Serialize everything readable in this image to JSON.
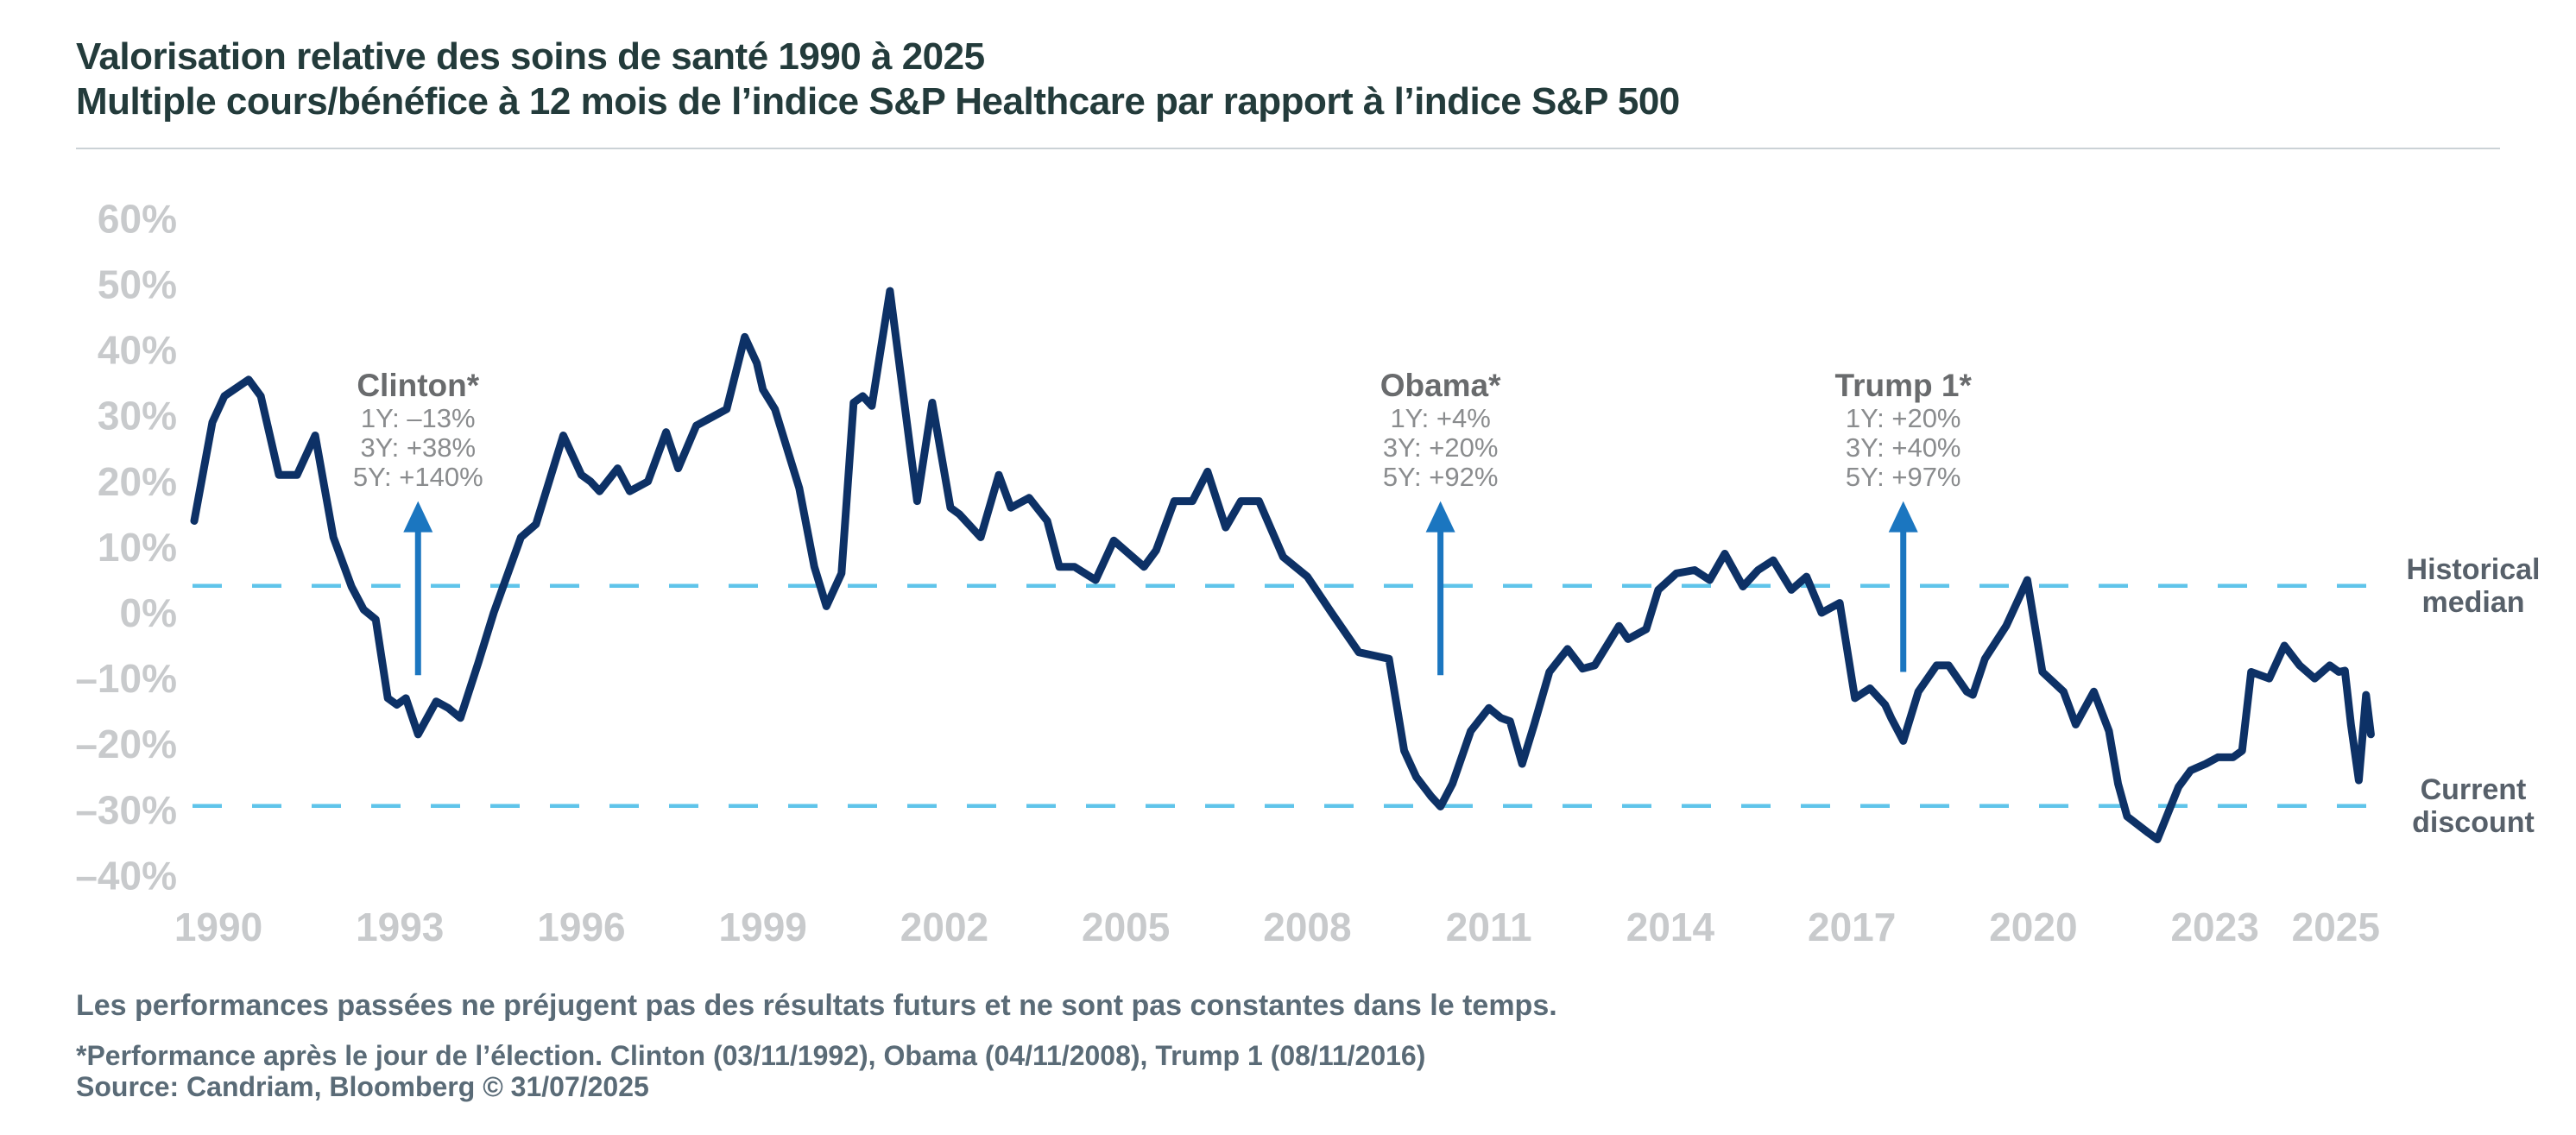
{
  "header": {
    "title_line1": "Valorisation relative des soins de santé 1990 à 2025",
    "title_line2": "Multiple cours/bénéfice à 12 mois de l’indice S&P Healthcare par rapport à l’indice S&P 500"
  },
  "colors": {
    "title": "#233b3b",
    "line": "#0d3166",
    "dashed_reference": "#5fc4ea",
    "arrow": "#1b76c0",
    "axis_labels": "#c8cacc",
    "annotation_title": "#696b6d",
    "annotation_values": "#8a8c8e",
    "reference_labels": "#57606a",
    "footer_text": "#5a6b77",
    "background": "#ffffff"
  },
  "chart_data": {
    "type": "line",
    "unit": "%",
    "grid": false,
    "legend": "none",
    "xlim": [
      1989.4,
      2026.4
    ],
    "ylim": [
      -45,
      65
    ],
    "x_tick_years": [
      1990,
      1993,
      1996,
      1999,
      2002,
      2005,
      2008,
      2011,
      2014,
      2017,
      2020,
      2023,
      2025
    ],
    "x_tick_labels": [
      "1990",
      "1993",
      "1996",
      "1999",
      "2002",
      "2005",
      "2008",
      "2011",
      "2014",
      "2017",
      "2020",
      "2023",
      "2025"
    ],
    "y_tick_values": [
      60,
      50,
      40,
      30,
      20,
      10,
      0,
      -10,
      -20,
      -30,
      -40
    ],
    "y_tick_labels": [
      "60%",
      "50%",
      "40%",
      "30%",
      "20%",
      "10%",
      "0%",
      "–10%",
      "–20%",
      "–30%",
      "–40%"
    ],
    "series": [
      {
        "name": "S&P Healthcare 12-month forward P/E premium vs S&P 500",
        "color": "#0d3166",
        "points": [
          [
            1989.6,
            14
          ],
          [
            1989.9,
            29
          ],
          [
            1990.1,
            33
          ],
          [
            1990.5,
            35.5
          ],
          [
            1990.7,
            33
          ],
          [
            1991.0,
            21
          ],
          [
            1991.3,
            21
          ],
          [
            1991.6,
            27
          ],
          [
            1991.9,
            11.5
          ],
          [
            1992.2,
            4
          ],
          [
            1992.4,
            0.5
          ],
          [
            1992.6,
            -1
          ],
          [
            1992.8,
            -13
          ],
          [
            1992.95,
            -14
          ],
          [
            1993.1,
            -13
          ],
          [
            1993.3,
            -18.5
          ],
          [
            1993.6,
            -13.5
          ],
          [
            1993.8,
            -14.5
          ],
          [
            1994.0,
            -16
          ],
          [
            1994.3,
            -7.5
          ],
          [
            1994.55,
            0
          ],
          [
            1995.0,
            11.5
          ],
          [
            1995.25,
            13.5
          ],
          [
            1995.7,
            27
          ],
          [
            1996.0,
            21
          ],
          [
            1996.15,
            20
          ],
          [
            1996.3,
            18.5
          ],
          [
            1996.6,
            22
          ],
          [
            1996.8,
            18.5
          ],
          [
            1997.1,
            20
          ],
          [
            1997.4,
            27.5
          ],
          [
            1997.6,
            22
          ],
          [
            1997.9,
            28.5
          ],
          [
            1998.1,
            29.5
          ],
          [
            1998.4,
            31
          ],
          [
            1998.7,
            42
          ],
          [
            1998.9,
            38
          ],
          [
            1999.0,
            34
          ],
          [
            1999.2,
            31
          ],
          [
            1999.6,
            19
          ],
          [
            1999.85,
            7
          ],
          [
            2000.05,
            1
          ],
          [
            2000.3,
            6
          ],
          [
            2000.5,
            32
          ],
          [
            2000.65,
            33
          ],
          [
            2000.8,
            31.5
          ],
          [
            2001.1,
            49
          ],
          [
            2001.45,
            24
          ],
          [
            2001.55,
            17
          ],
          [
            2001.8,
            32
          ],
          [
            2002.1,
            16
          ],
          [
            2002.25,
            15
          ],
          [
            2002.6,
            11.5
          ],
          [
            2002.9,
            21
          ],
          [
            2003.1,
            16
          ],
          [
            2003.4,
            17.5
          ],
          [
            2003.7,
            14
          ],
          [
            2003.9,
            7
          ],
          [
            2004.15,
            7
          ],
          [
            2004.5,
            5
          ],
          [
            2004.8,
            11
          ],
          [
            2005.3,
            7
          ],
          [
            2005.5,
            9.5
          ],
          [
            2005.8,
            17
          ],
          [
            2006.1,
            17
          ],
          [
            2006.35,
            21.5
          ],
          [
            2006.65,
            13
          ],
          [
            2006.9,
            17
          ],
          [
            2007.2,
            17
          ],
          [
            2007.6,
            8.5
          ],
          [
            2008.0,
            5.5
          ],
          [
            2008.4,
            0
          ],
          [
            2008.7,
            -4
          ],
          [
            2008.85,
            -6
          ],
          [
            2009.1,
            -6.5
          ],
          [
            2009.35,
            -7
          ],
          [
            2009.6,
            -21
          ],
          [
            2009.8,
            -25
          ],
          [
            2010.05,
            -28
          ],
          [
            2010.2,
            -29.5
          ],
          [
            2010.4,
            -26
          ],
          [
            2010.7,
            -18
          ],
          [
            2011.0,
            -14.5
          ],
          [
            2011.2,
            -16
          ],
          [
            2011.35,
            -16.5
          ],
          [
            2011.55,
            -23
          ],
          [
            2011.75,
            -17
          ],
          [
            2012.0,
            -9
          ],
          [
            2012.3,
            -5.5
          ],
          [
            2012.55,
            -8.5
          ],
          [
            2012.75,
            -8
          ],
          [
            2013.15,
            -2
          ],
          [
            2013.3,
            -4
          ],
          [
            2013.6,
            -2.5
          ],
          [
            2013.8,
            3.5
          ],
          [
            2014.1,
            6
          ],
          [
            2014.4,
            6.5
          ],
          [
            2014.65,
            5
          ],
          [
            2014.9,
            9
          ],
          [
            2015.2,
            4
          ],
          [
            2015.45,
            6.5
          ],
          [
            2015.7,
            8
          ],
          [
            2016.0,
            3.5
          ],
          [
            2016.25,
            5.5
          ],
          [
            2016.5,
            0
          ],
          [
            2016.8,
            1.5
          ],
          [
            2017.05,
            -13
          ],
          [
            2017.3,
            -11.5
          ],
          [
            2017.55,
            -14
          ],
          [
            2017.65,
            -16
          ],
          [
            2017.85,
            -19.5
          ],
          [
            2018.1,
            -12
          ],
          [
            2018.4,
            -8
          ],
          [
            2018.6,
            -8
          ],
          [
            2018.9,
            -12
          ],
          [
            2019.0,
            -12.5
          ],
          [
            2019.2,
            -7
          ],
          [
            2019.55,
            -2
          ],
          [
            2019.9,
            5
          ],
          [
            2020.15,
            -9
          ],
          [
            2020.5,
            -12
          ],
          [
            2020.7,
            -17
          ],
          [
            2021.0,
            -12
          ],
          [
            2021.25,
            -18
          ],
          [
            2021.4,
            -26
          ],
          [
            2021.55,
            -31
          ],
          [
            2021.9,
            -33.5
          ],
          [
            2022.05,
            -34.5
          ],
          [
            2022.4,
            -26.5
          ],
          [
            2022.6,
            -24
          ],
          [
            2022.85,
            -23
          ],
          [
            2023.05,
            -22
          ],
          [
            2023.3,
            -22
          ],
          [
            2023.45,
            -21
          ],
          [
            2023.6,
            -9
          ],
          [
            2023.9,
            -10
          ],
          [
            2024.15,
            -5
          ],
          [
            2024.4,
            -8
          ],
          [
            2024.65,
            -10
          ],
          [
            2024.9,
            -8
          ],
          [
            2025.05,
            -9
          ],
          [
            2025.15,
            -8.8
          ],
          [
            2025.25,
            -17
          ],
          [
            2025.38,
            -25.5
          ],
          [
            2025.5,
            -12.5
          ],
          [
            2025.58,
            -18.5
          ]
        ]
      }
    ],
    "reference_lines": [
      {
        "id": "historical_median",
        "value": 4.1,
        "style": "dashed"
      },
      {
        "id": "current_discount",
        "value": -29.4,
        "style": "dashed"
      }
    ]
  },
  "reference_labels": {
    "historical_median": {
      "line1": "Historical",
      "line2": "median",
      "value": 4.1
    },
    "current_discount": {
      "line1": "Current",
      "line2": "discount",
      "value": -29.4
    }
  },
  "annotations": [
    {
      "id": "clinton",
      "title": "Clinton*",
      "lines": [
        "1Y: –13%",
        "3Y: +38%",
        "5Y: +140%"
      ],
      "x_year": 1993.3,
      "arrow_top_value": 17,
      "arrow_bottom_value": -9.5
    },
    {
      "id": "obama",
      "title": "Obama*",
      "lines": [
        "1Y: +4%",
        "3Y: +20%",
        "5Y: +92%"
      ],
      "x_year": 2010.2,
      "arrow_top_value": 17,
      "arrow_bottom_value": -9.5
    },
    {
      "id": "trump",
      "title": "Trump 1*",
      "lines": [
        "1Y: +20%",
        "3Y: +40%",
        "5Y: +97%"
      ],
      "x_year": 2017.85,
      "arrow_top_value": 17,
      "arrow_bottom_value": -9
    }
  ],
  "footer": {
    "note1": "Les performances passées ne préjugent pas des résultats futurs et ne sont pas constantes dans le temps.",
    "note2": "*Performance après le jour de l’élection. Clinton (03/11/1992), Obama (04/11/2008), Trump 1 (08/11/2016)",
    "note3": "Source: Candriam, Bloomberg © 31/07/2025"
  }
}
